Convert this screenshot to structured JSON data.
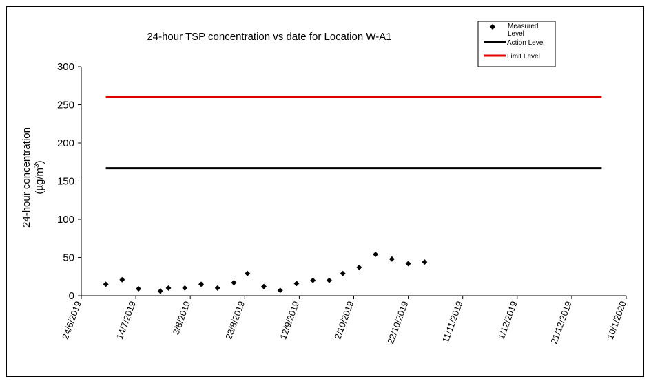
{
  "chart_data": {
    "type": "scatter",
    "title": "24-hour TSP concentration vs date for Location W-A1",
    "ylabel_line1": "24-hour concentration",
    "ylabel_line2_prefix": "(µg/m",
    "ylabel_line2_sup": "3",
    "ylabel_line2_suffix": ")",
    "ylim": [
      0,
      300
    ],
    "yticks": [
      0,
      50,
      100,
      150,
      200,
      250,
      300
    ],
    "xlim": [
      "2019-06-24",
      "2020-01-10"
    ],
    "xticks": [
      {
        "date": "2019-06-24",
        "label": "24/6/2019"
      },
      {
        "date": "2019-07-14",
        "label": "14/7/2019"
      },
      {
        "date": "2019-08-03",
        "label": "3/8/2019"
      },
      {
        "date": "2019-08-23",
        "label": "23/8/2019"
      },
      {
        "date": "2019-09-12",
        "label": "12/9/2019"
      },
      {
        "date": "2019-10-02",
        "label": "2/10/2019"
      },
      {
        "date": "2019-10-22",
        "label": "22/10/2019"
      },
      {
        "date": "2019-11-11",
        "label": "11/11/2019"
      },
      {
        "date": "2019-12-01",
        "label": "1/12/2019"
      },
      {
        "date": "2019-12-21",
        "label": "21/12/2019"
      },
      {
        "date": "2020-01-10",
        "label": "10/1/2020"
      }
    ],
    "grid": false,
    "legend_position": "top-right",
    "legend": [
      {
        "label": "Measured Level",
        "type": "marker",
        "color": "#000000"
      },
      {
        "label": "Action Level",
        "type": "line",
        "color": "#000000"
      },
      {
        "label": "Limit Level",
        "type": "line",
        "color": "#e00000"
      }
    ],
    "series": [
      {
        "name": "Measured Level",
        "type": "scatter",
        "marker": "diamond",
        "color": "#000000",
        "points": [
          {
            "x": "2019-07-03",
            "y": 15
          },
          {
            "x": "2019-07-09",
            "y": 21
          },
          {
            "x": "2019-07-15",
            "y": 9
          },
          {
            "x": "2019-07-23",
            "y": 6
          },
          {
            "x": "2019-07-26",
            "y": 10
          },
          {
            "x": "2019-08-01",
            "y": 10
          },
          {
            "x": "2019-08-07",
            "y": 15
          },
          {
            "x": "2019-08-13",
            "y": 10
          },
          {
            "x": "2019-08-19",
            "y": 17
          },
          {
            "x": "2019-08-24",
            "y": 29
          },
          {
            "x": "2019-08-30",
            "y": 12
          },
          {
            "x": "2019-09-05",
            "y": 7
          },
          {
            "x": "2019-09-11",
            "y": 16
          },
          {
            "x": "2019-09-17",
            "y": 20
          },
          {
            "x": "2019-09-23",
            "y": 20
          },
          {
            "x": "2019-09-28",
            "y": 29
          },
          {
            "x": "2019-10-04",
            "y": 37
          },
          {
            "x": "2019-10-10",
            "y": 54
          },
          {
            "x": "2019-10-16",
            "y": 48
          },
          {
            "x": "2019-10-22",
            "y": 42
          },
          {
            "x": "2019-10-28",
            "y": 44
          }
        ]
      },
      {
        "name": "Action Level",
        "type": "line",
        "color": "#000000",
        "points": [
          {
            "x": "2019-07-03",
            "y": 167
          },
          {
            "x": "2020-01-01",
            "y": 167
          }
        ]
      },
      {
        "name": "Limit Level",
        "type": "line",
        "color": "#e00000",
        "points": [
          {
            "x": "2019-07-03",
            "y": 260
          },
          {
            "x": "2020-01-01",
            "y": 260
          }
        ]
      }
    ]
  }
}
